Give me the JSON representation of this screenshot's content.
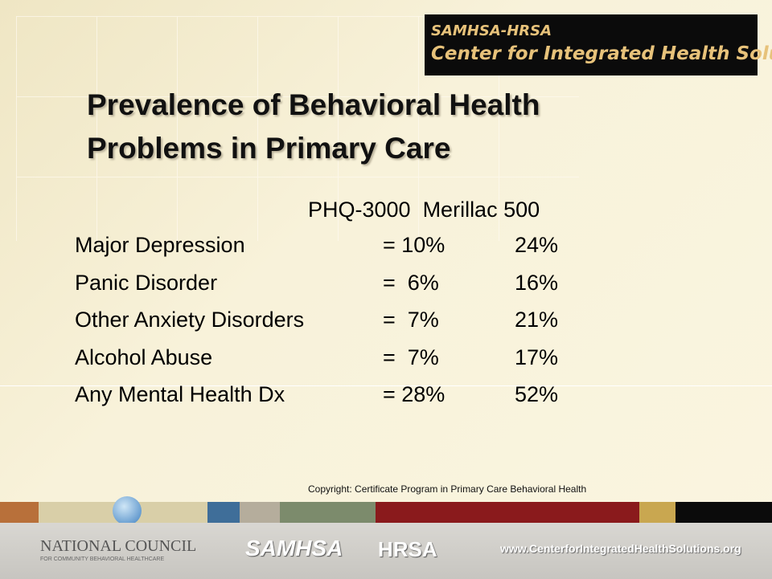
{
  "banner": {
    "line1": "SAMHSA-HRSA",
    "line2": "Center for Integrated Health Solutions"
  },
  "title": {
    "line1": "Prevalence of Behavioral Health",
    "line2": "Problems in Primary Care"
  },
  "table": {
    "header": "PHQ-3000  Merillac 500",
    "rows": [
      [
        "Major Depression",
        "= 10%",
        "24%"
      ],
      [
        "Panic Disorder",
        "=  6%",
        "16%"
      ],
      [
        "Other Anxiety Disorders",
        "=  7%",
        "21%"
      ],
      [
        "Alcohol Abuse",
        "=  7%",
        "17%"
      ],
      [
        "Any Mental Health Dx",
        "= 28%",
        "52%"
      ]
    ]
  },
  "copyright": "Copyright: Certificate Program in Primary Care Behavioral Health",
  "footer": {
    "council": "NATIONAL COUNCIL",
    "council_sub": "FOR COMMUNITY BEHAVIORAL HEALTHCARE",
    "samhsa": "SAMHSA",
    "hrsa": "HRSA",
    "url": "www.CenterforIntegratedHealthSolutions.org"
  }
}
